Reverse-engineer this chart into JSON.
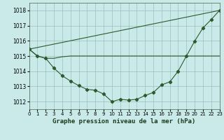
{
  "title": "Graphe pression niveau de la mer (hPa)",
  "bg_color": "#caeaea",
  "grid_color": "#9ebebe",
  "line_color": "#2d5a2d",
  "xlim": [
    0,
    23
  ],
  "ylim": [
    1011.5,
    1018.5
  ],
  "yticks": [
    1012,
    1013,
    1014,
    1015,
    1016,
    1017,
    1018
  ],
  "xticks": [
    0,
    1,
    2,
    3,
    4,
    5,
    6,
    7,
    8,
    9,
    10,
    11,
    12,
    13,
    14,
    15,
    16,
    17,
    18,
    19,
    20,
    21,
    22,
    23
  ],
  "line1_x": [
    0,
    1,
    2,
    3,
    4,
    5,
    6,
    7,
    8,
    9,
    10,
    11,
    12,
    13,
    14,
    15,
    16,
    17,
    18,
    19,
    20,
    21,
    22,
    23
  ],
  "line1_y": [
    1015.45,
    1015.0,
    1014.85,
    1014.2,
    1013.7,
    1013.35,
    1013.05,
    1012.8,
    1012.75,
    1012.5,
    1012.0,
    1012.15,
    1012.1,
    1012.15,
    1012.4,
    1012.6,
    1013.1,
    1013.3,
    1014.0,
    1015.0,
    1015.98,
    1016.85,
    1017.4,
    1018.0
  ],
  "line2_x": [
    0,
    1,
    2,
    3,
    4,
    5,
    6,
    7,
    8,
    9,
    10,
    11,
    12,
    13,
    14,
    15,
    16,
    17,
    18,
    19,
    20,
    21,
    22,
    23
  ],
  "line2_y": [
    1015.45,
    1015.0,
    1014.85,
    1014.85,
    1014.95,
    1015.0,
    1015.0,
    1015.0,
    1015.0,
    1015.0,
    1015.0,
    1015.0,
    1015.0,
    1015.0,
    1015.0,
    1015.0,
    1015.0,
    1015.0,
    1015.0,
    1015.0,
    1015.0,
    1015.0,
    1015.0,
    1015.0
  ],
  "line3_x": [
    0,
    23
  ],
  "line3_y": [
    1015.45,
    1018.0
  ],
  "ylabel_size": 5.5,
  "xlabel_size": 5.0,
  "title_size": 6.5,
  "lw": 0.8,
  "marker_size": 2.2
}
